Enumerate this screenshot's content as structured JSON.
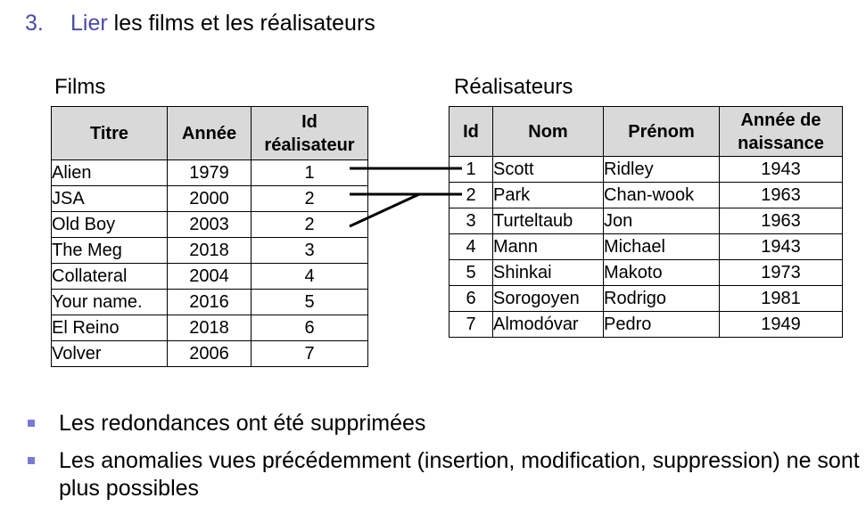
{
  "heading": {
    "number": "3.",
    "accent": "Lier",
    "rest": " les films et les réalisateurs"
  },
  "films": {
    "caption": "Films",
    "headers": [
      "Titre",
      "Année",
      "Id réalisateur"
    ],
    "header_lines": {
      "id_line1": "Id",
      "id_line2": "réalisateur"
    },
    "rows": [
      [
        "Alien",
        "1979",
        "1"
      ],
      [
        "JSA",
        "2000",
        "2"
      ],
      [
        "Old Boy",
        "2003",
        "2"
      ],
      [
        "The Meg",
        "2018",
        "3"
      ],
      [
        "Collateral",
        "2004",
        "4"
      ],
      [
        "Your name.",
        "2016",
        "5"
      ],
      [
        "El Reino",
        "2018",
        "6"
      ],
      [
        "Volver",
        "2006",
        "7"
      ]
    ]
  },
  "realisateurs": {
    "caption": "Réalisateurs",
    "headers": [
      "Id",
      "Nom",
      "Prénom",
      "Année de naissance"
    ],
    "header_lines": {
      "annee_line1": "Année de",
      "annee_line2": "naissance"
    },
    "rows": [
      [
        "1",
        "Scott",
        "Ridley",
        "1943"
      ],
      [
        "2",
        "Park",
        "Chan-wook",
        "1963"
      ],
      [
        "3",
        "Turteltaub",
        "Jon",
        "1963"
      ],
      [
        "4",
        "Mann",
        "Michael",
        "1943"
      ],
      [
        "5",
        "Shinkai",
        "Makoto",
        "1973"
      ],
      [
        "6",
        "Sorogoyen",
        "Rodrigo",
        "1981"
      ],
      [
        "7",
        "Almodóvar",
        "Pedro",
        "1949"
      ]
    ]
  },
  "bullets": [
    "Les redondances ont été supprimées",
    "Les anomalies vues précédemment (insertion, modification, suppression) ne sont plus possibles"
  ],
  "colors": {
    "accent": "#4b4ba7",
    "bullet": "#7a7ad6",
    "header_bg": "#d9d9d9"
  }
}
